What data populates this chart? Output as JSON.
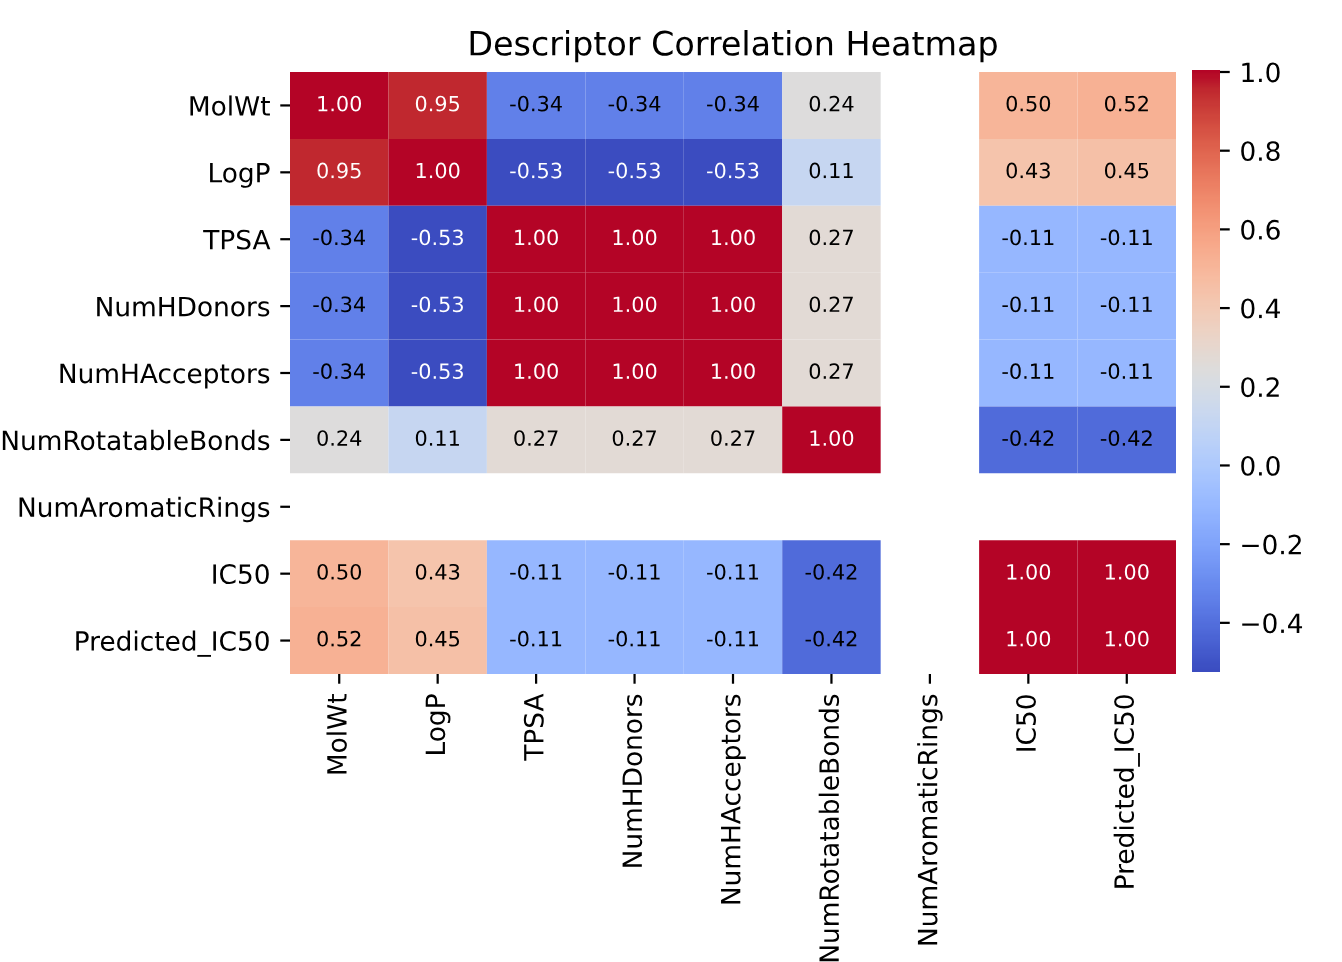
{
  "chart_data": {
    "type": "heatmap",
    "title": "Descriptor Correlation Heatmap",
    "categories": [
      "MolWt",
      "LogP",
      "TPSA",
      "NumHDonors",
      "NumHAcceptors",
      "NumRotatableBonds",
      "NumAromaticRings",
      "IC50",
      "Predicted_IC50"
    ],
    "y_categories": [
      "MolWt",
      "LogP",
      "TPSA",
      "NumHDonors",
      "NumHAcceptors",
      "NumRotatableBonds",
      "NumAromaticRings",
      "IC50",
      "Predicted_IC50"
    ],
    "cells": [
      [
        1.0,
        0.95,
        -0.34,
        -0.34,
        -0.34,
        0.24,
        null,
        0.5,
        0.52
      ],
      [
        0.95,
        1.0,
        -0.53,
        -0.53,
        -0.53,
        0.11,
        null,
        0.43,
        0.45
      ],
      [
        -0.34,
        -0.53,
        1.0,
        1.0,
        1.0,
        0.27,
        null,
        -0.11,
        -0.11
      ],
      [
        -0.34,
        -0.53,
        1.0,
        1.0,
        1.0,
        0.27,
        null,
        -0.11,
        -0.11
      ],
      [
        -0.34,
        -0.53,
        1.0,
        1.0,
        1.0,
        0.27,
        null,
        -0.11,
        -0.11
      ],
      [
        0.24,
        0.11,
        0.27,
        0.27,
        0.27,
        1.0,
        null,
        -0.42,
        -0.42
      ],
      [
        null,
        null,
        null,
        null,
        null,
        null,
        null,
        null,
        null
      ],
      [
        0.5,
        0.43,
        -0.11,
        -0.11,
        -0.11,
        -0.42,
        null,
        1.0,
        1.0
      ],
      [
        0.52,
        0.45,
        -0.11,
        -0.11,
        -0.11,
        -0.42,
        null,
        1.0,
        1.0
      ]
    ],
    "cell_labels": [
      [
        "1.00",
        "0.95",
        "-0.34",
        "-0.34",
        "-0.34",
        "0.24",
        null,
        "0.50",
        "0.52"
      ],
      [
        "0.95",
        "1.00",
        "-0.53",
        "-0.53",
        "-0.53",
        "0.11",
        null,
        "0.43",
        "0.45"
      ],
      [
        "-0.34",
        "-0.53",
        "1.00",
        "1.00",
        "1.00",
        "0.27",
        null,
        "-0.11",
        "-0.11"
      ],
      [
        "-0.34",
        "-0.53",
        "1.00",
        "1.00",
        "1.00",
        "0.27",
        null,
        "-0.11",
        "-0.11"
      ],
      [
        "-0.34",
        "-0.53",
        "1.00",
        "1.00",
        "1.00",
        "0.27",
        null,
        "-0.11",
        "-0.11"
      ],
      [
        "0.24",
        "0.11",
        "0.27",
        "0.27",
        "0.27",
        "1.00",
        null,
        "-0.42",
        "-0.42"
      ],
      [
        null,
        null,
        null,
        null,
        null,
        null,
        null,
        null,
        null
      ],
      [
        "0.50",
        "0.43",
        "-0.11",
        "-0.11",
        "-0.11",
        "-0.42",
        null,
        "1.00",
        "1.00"
      ],
      [
        "0.52",
        "0.45",
        "-0.11",
        "-0.11",
        "-0.11",
        "-0.42",
        null,
        "1.00",
        "1.00"
      ]
    ],
    "clim": [
      -0.53,
      1.0
    ],
    "cticks": [
      {
        "value": -0.4,
        "label": "−0.4"
      },
      {
        "value": -0.2,
        "label": "−0.2"
      },
      {
        "value": 0.0,
        "label": "0.0"
      },
      {
        "value": 0.2,
        "label": "0.2"
      },
      {
        "value": 0.4,
        "label": "0.4"
      },
      {
        "value": 0.6,
        "label": "0.6"
      },
      {
        "value": 0.8,
        "label": "0.8"
      },
      {
        "value": 1.0,
        "label": "1.0"
      }
    ]
  }
}
